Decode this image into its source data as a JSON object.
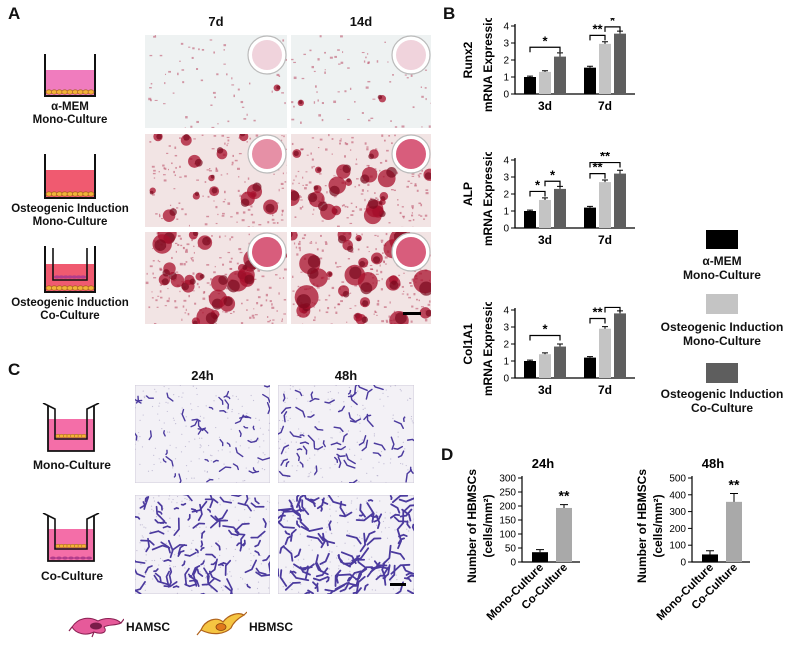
{
  "panels": {
    "A": "A",
    "B": "B",
    "C": "C",
    "D": "D"
  },
  "panelA": {
    "col_headers": [
      "7d",
      "14d"
    ],
    "rows": [
      {
        "label_line1": "α-MEM",
        "label_line2": "Mono-Culture",
        "type": "mono",
        "medium": "#f07cbe",
        "staining_density": 0.05
      },
      {
        "label_line1": "Osteogenic Induction",
        "label_line2": "Mono-Culture",
        "type": "mono",
        "medium": "#f05a70",
        "staining_density": 0.55
      },
      {
        "label_line1": "Osteogenic Induction",
        "label_line2": "Co-Culture",
        "type": "co",
        "medium": "#f05a70",
        "staining_density": 0.85
      }
    ]
  },
  "panelB": {
    "charts": [
      {
        "type": "bar",
        "ylabel_gene": "Runx2",
        "ylabel": "mRNA Expression",
        "categories": [
          "3d",
          "7d"
        ],
        "ylim": [
          0,
          4
        ],
        "yticks": [
          0,
          1,
          2,
          3,
          4
        ],
        "series": [
          {
            "values": [
              1.0,
              1.55
            ]
          },
          {
            "values": [
              1.3,
              2.95
            ]
          },
          {
            "values": [
              2.2,
              3.55
            ]
          }
        ],
        "errors": [
          [
            0.05,
            0.08
          ],
          [
            0.07,
            0.12
          ],
          [
            0.22,
            0.15
          ]
        ],
        "brackets": [
          {
            "from": [
              0,
              0
            ],
            "to": [
              0,
              2
            ],
            "level": 2.75,
            "label": "*"
          },
          {
            "from": [
              1,
              0
            ],
            "to": [
              1,
              1
            ],
            "level": 3.45,
            "label": "**"
          },
          {
            "from": [
              1,
              1
            ],
            "to": [
              1,
              2
            ],
            "level": 3.95,
            "label": "*"
          }
        ]
      },
      {
        "type": "bar",
        "ylabel_gene": "ALP",
        "ylabel": "mRNA Expression",
        "categories": [
          "3d",
          "7d"
        ],
        "ylim": [
          0,
          4
        ],
        "yticks": [
          0,
          1,
          2,
          3,
          4
        ],
        "series": [
          {
            "values": [
              1.0,
              1.2
            ]
          },
          {
            "values": [
              1.65,
              2.7
            ]
          },
          {
            "values": [
              2.3,
              3.2
            ]
          }
        ],
        "errors": [
          [
            0.05,
            0.07
          ],
          [
            0.12,
            0.12
          ],
          [
            0.15,
            0.2
          ]
        ],
        "brackets": [
          {
            "from": [
              0,
              0
            ],
            "to": [
              0,
              1
            ],
            "level": 2.15,
            "label": "*"
          },
          {
            "from": [
              0,
              1
            ],
            "to": [
              0,
              2
            ],
            "level": 2.75,
            "label": "*"
          },
          {
            "from": [
              1,
              0
            ],
            "to": [
              1,
              1
            ],
            "level": 3.2,
            "label": "**"
          },
          {
            "from": [
              1,
              0
            ],
            "to": [
              1,
              2
            ],
            "level": 3.85,
            "label": "**"
          }
        ]
      },
      {
        "type": "bar",
        "ylabel_gene": "Col1A1",
        "ylabel": "mRNA Expression",
        "categories": [
          "3d",
          "7d"
        ],
        "ylim": [
          0,
          4
        ],
        "yticks": [
          0,
          1,
          2,
          3,
          4
        ],
        "series": [
          {
            "values": [
              1.0,
              1.2
            ]
          },
          {
            "values": [
              1.4,
              2.9
            ]
          },
          {
            "values": [
              1.85,
              3.8
            ]
          }
        ],
        "errors": [
          [
            0.05,
            0.06
          ],
          [
            0.08,
            0.12
          ],
          [
            0.15,
            0.15
          ]
        ],
        "brackets": [
          {
            "from": [
              0,
              0
            ],
            "to": [
              0,
              2
            ],
            "level": 2.5,
            "label": "*"
          },
          {
            "from": [
              1,
              0
            ],
            "to": [
              1,
              1
            ],
            "level": 3.5,
            "label": "**"
          },
          {
            "from": [
              1,
              1
            ],
            "to": [
              1,
              2
            ],
            "level": 4.15,
            "label": "**"
          }
        ]
      }
    ],
    "legend": [
      {
        "line1": "α-MEM",
        "line2": "Mono-Culture",
        "color": "#000000"
      },
      {
        "line1": "Osteogenic Induction",
        "line2": "Mono-Culture",
        "color": "#c4c4c4"
      },
      {
        "line1": "Osteogenic Induction",
        "line2": "Co-Culture",
        "color": "#5e5e5e"
      }
    ]
  },
  "panelC": {
    "col_headers": [
      "24h",
      "48h"
    ],
    "rows": [
      {
        "label": "Mono-Culture",
        "type": "mono",
        "density": 0.3
      },
      {
        "label": "Co-Culture",
        "type": "co",
        "density": 1.0
      }
    ],
    "cell_legend": [
      {
        "label": "HAMSC",
        "icon": "hamsc-cell-icon"
      },
      {
        "label": "HBMSC",
        "icon": "hbmsc-cell-icon"
      }
    ]
  },
  "panelD": {
    "chart_data": [
      {
        "type": "bar",
        "title": "24h",
        "ylabel": "Number of HBMSCs",
        "ylabel2": "(cells/mm²)",
        "categories": [
          "Mono-Culture",
          "Co-Culture"
        ],
        "values": [
          35,
          193
        ],
        "errors": [
          9,
          12
        ],
        "ylim": [
          0,
          300
        ],
        "yticks": [
          0,
          50,
          100,
          150,
          200,
          250,
          300
        ],
        "colors": [
          "#000000",
          "#a9a9a9"
        ],
        "annotation": "**"
      },
      {
        "type": "bar",
        "title": "48h",
        "ylabel": "Number of HBMSCs",
        "ylabel2": "(cells/mm²)",
        "categories": [
          "Mono-Culture",
          "Co-Culture"
        ],
        "values": [
          45,
          358
        ],
        "errors": [
          22,
          50
        ],
        "ylim": [
          0,
          500
        ],
        "yticks": [
          0,
          100,
          200,
          300,
          400,
          500
        ],
        "colors": [
          "#000000",
          "#a9a9a9"
        ],
        "annotation": "**"
      }
    ]
  }
}
